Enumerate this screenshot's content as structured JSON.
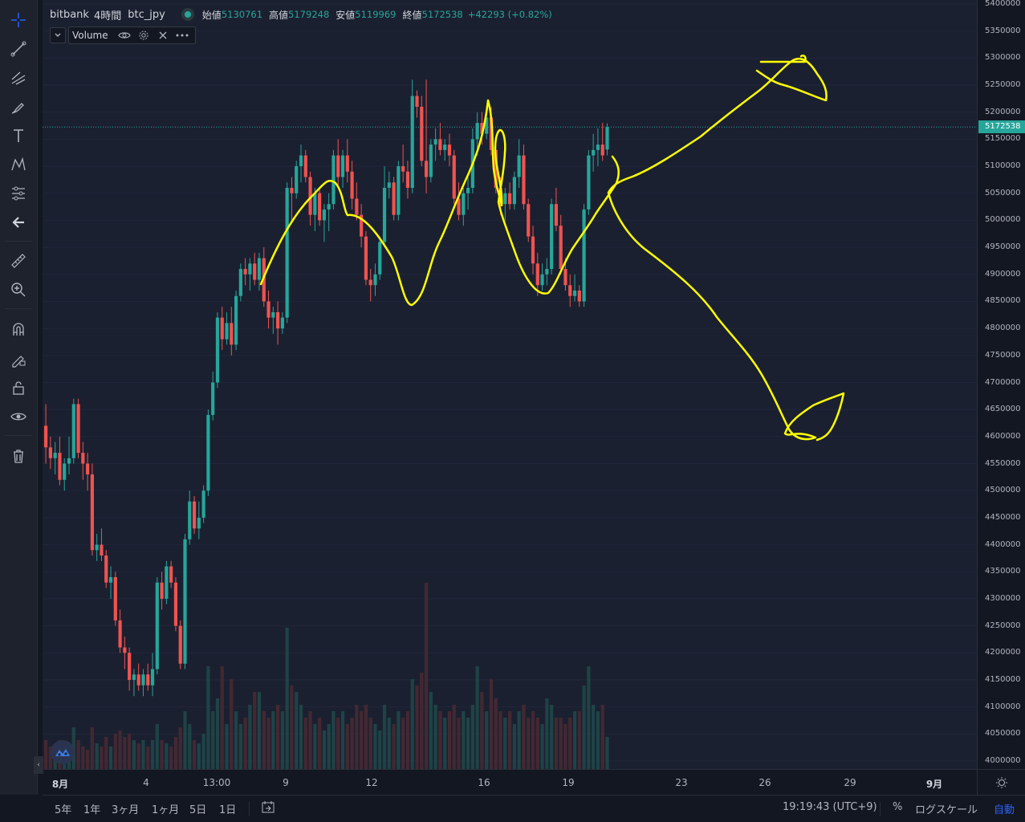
{
  "legend": {
    "exchange": "bitbank",
    "interval": "4時間",
    "symbol": "btc_jpy",
    "open_label": "始値",
    "open_value": "5130761",
    "high_label": "高値",
    "high_value": "5179248",
    "low_label": "安値",
    "low_value": "5119969",
    "close_label": "終値",
    "close_value": "5172538",
    "change": "+42293 (+0.82%)"
  },
  "study": {
    "name": "Volume"
  },
  "price_axis": {
    "labels": [
      "5400000",
      "5350000",
      "5300000",
      "5250000",
      "5200000",
      "5150000",
      "5100000",
      "5050000",
      "5000000",
      "4950000",
      "4900000",
      "4850000",
      "4800000",
      "4750000",
      "4700000",
      "4650000",
      "4600000",
      "4550000",
      "4500000",
      "4450000",
      "4400000",
      "4350000",
      "4300000",
      "4250000",
      "4200000",
      "4150000",
      "4100000",
      "4050000",
      "4000000"
    ],
    "last_price": "5172538"
  },
  "time_axis": {
    "labels": [
      {
        "text": "8月",
        "bold": true
      },
      {
        "text": "4",
        "bold": false
      },
      {
        "text": "13:00",
        "bold": false
      },
      {
        "text": "9",
        "bold": false
      },
      {
        "text": "12",
        "bold": false
      },
      {
        "text": "16",
        "bold": false
      },
      {
        "text": "19",
        "bold": false
      },
      {
        "text": "23",
        "bold": false
      },
      {
        "text": "26",
        "bold": false
      },
      {
        "text": "29",
        "bold": false
      },
      {
        "text": "9月",
        "bold": true
      }
    ]
  },
  "bottom_bar": {
    "ranges": [
      "5年",
      "1年",
      "3ヶ月",
      "1ヶ月",
      "5日",
      "1日"
    ],
    "time": "19:19:43 (UTC+9)",
    "percent": "%",
    "log_scale": "ログスケール",
    "auto": "自動"
  },
  "colors": {
    "up": "#26a69a",
    "down": "#ef5350",
    "annotation": "#ffff00",
    "background": "#1b2030"
  },
  "chart_data": {
    "type": "candlestick",
    "title": "bitbank 4時間 btc_jpy",
    "ylim": [
      4000000,
      5400000
    ],
    "interval": "4h",
    "last_price": 5172538,
    "candles": [
      {
        "o": 4620000,
        "h": 4660000,
        "l": 4550000,
        "c": 4580000,
        "v": 0.45
      },
      {
        "o": 4580000,
        "h": 4600000,
        "l": 4540000,
        "c": 4560000,
        "v": 0.35
      },
      {
        "o": 4560000,
        "h": 4590000,
        "l": 4530000,
        "c": 4570000,
        "v": 0.3
      },
      {
        "o": 4570000,
        "h": 4600000,
        "l": 4510000,
        "c": 4520000,
        "v": 0.45
      },
      {
        "o": 4520000,
        "h": 4560000,
        "l": 4500000,
        "c": 4550000,
        "v": 0.28
      },
      {
        "o": 4550000,
        "h": 4600000,
        "l": 4530000,
        "c": 4560000,
        "v": 0.3
      },
      {
        "o": 4560000,
        "h": 4670000,
        "l": 4550000,
        "c": 4660000,
        "v": 0.65
      },
      {
        "o": 4660000,
        "h": 4670000,
        "l": 4560000,
        "c": 4570000,
        "v": 0.45
      },
      {
        "o": 4570000,
        "h": 4590000,
        "l": 4520000,
        "c": 4550000,
        "v": 0.35
      },
      {
        "o": 4550000,
        "h": 4570000,
        "l": 4500000,
        "c": 4530000,
        "v": 0.3
      },
      {
        "o": 4530000,
        "h": 4550000,
        "l": 4380000,
        "c": 4390000,
        "v": 0.65
      },
      {
        "o": 4390000,
        "h": 4420000,
        "l": 4370000,
        "c": 4400000,
        "v": 0.4
      },
      {
        "o": 4400000,
        "h": 4430000,
        "l": 4370000,
        "c": 4380000,
        "v": 0.35
      },
      {
        "o": 4380000,
        "h": 4390000,
        "l": 4320000,
        "c": 4330000,
        "v": 0.5
      },
      {
        "o": 4330000,
        "h": 4360000,
        "l": 4300000,
        "c": 4340000,
        "v": 0.35
      },
      {
        "o": 4340000,
        "h": 4350000,
        "l": 4250000,
        "c": 4260000,
        "v": 0.55
      },
      {
        "o": 4260000,
        "h": 4280000,
        "l": 4200000,
        "c": 4210000,
        "v": 0.6
      },
      {
        "o": 4210000,
        "h": 4230000,
        "l": 4170000,
        "c": 4200000,
        "v": 0.5
      },
      {
        "o": 4200000,
        "h": 4210000,
        "l": 4130000,
        "c": 4150000,
        "v": 0.55
      },
      {
        "o": 4150000,
        "h": 4170000,
        "l": 4120000,
        "c": 4160000,
        "v": 0.45
      },
      {
        "o": 4160000,
        "h": 4180000,
        "l": 4130000,
        "c": 4140000,
        "v": 0.4
      },
      {
        "o": 4140000,
        "h": 4170000,
        "l": 4120000,
        "c": 4160000,
        "v": 0.45
      },
      {
        "o": 4160000,
        "h": 4180000,
        "l": 4130000,
        "c": 4140000,
        "v": 0.35
      },
      {
        "o": 4140000,
        "h": 4200000,
        "l": 4120000,
        "c": 4170000,
        "v": 0.45
      },
      {
        "o": 4170000,
        "h": 4340000,
        "l": 4160000,
        "c": 4330000,
        "v": 0.7
      },
      {
        "o": 4330000,
        "h": 4350000,
        "l": 4280000,
        "c": 4300000,
        "v": 0.45
      },
      {
        "o": 4300000,
        "h": 4370000,
        "l": 4290000,
        "c": 4360000,
        "v": 0.4
      },
      {
        "o": 4360000,
        "h": 4370000,
        "l": 4320000,
        "c": 4330000,
        "v": 0.35
      },
      {
        "o": 4330000,
        "h": 4340000,
        "l": 4240000,
        "c": 4250000,
        "v": 0.5
      },
      {
        "o": 4250000,
        "h": 4260000,
        "l": 4170000,
        "c": 4180000,
        "v": 0.65
      },
      {
        "o": 4180000,
        "h": 4420000,
        "l": 4170000,
        "c": 4410000,
        "v": 0.9
      },
      {
        "o": 4410000,
        "h": 4500000,
        "l": 4400000,
        "c": 4480000,
        "v": 0.7
      },
      {
        "o": 4480000,
        "h": 4490000,
        "l": 4420000,
        "c": 4430000,
        "v": 0.45
      },
      {
        "o": 4430000,
        "h": 4480000,
        "l": 4410000,
        "c": 4450000,
        "v": 0.4
      },
      {
        "o": 4450000,
        "h": 4510000,
        "l": 4440000,
        "c": 4500000,
        "v": 0.55
      },
      {
        "o": 4500000,
        "h": 4650000,
        "l": 4490000,
        "c": 4640000,
        "v": 1.6
      },
      {
        "o": 4640000,
        "h": 4720000,
        "l": 4630000,
        "c": 4700000,
        "v": 0.9
      },
      {
        "o": 4700000,
        "h": 4830000,
        "l": 4690000,
        "c": 4820000,
        "v": 1.1
      },
      {
        "o": 4820000,
        "h": 4840000,
        "l": 4760000,
        "c": 4780000,
        "v": 1.6
      },
      {
        "o": 4780000,
        "h": 4830000,
        "l": 4770000,
        "c": 4810000,
        "v": 0.7
      },
      {
        "o": 4810000,
        "h": 4840000,
        "l": 4750000,
        "c": 4770000,
        "v": 1.4
      },
      {
        "o": 4770000,
        "h": 4870000,
        "l": 4760000,
        "c": 4860000,
        "v": 0.9
      },
      {
        "o": 4860000,
        "h": 4920000,
        "l": 4850000,
        "c": 4910000,
        "v": 0.7
      },
      {
        "o": 4910000,
        "h": 4930000,
        "l": 4880000,
        "c": 4900000,
        "v": 0.8
      },
      {
        "o": 4900000,
        "h": 4930000,
        "l": 4870000,
        "c": 4920000,
        "v": 1.0
      },
      {
        "o": 4920000,
        "h": 4940000,
        "l": 4880000,
        "c": 4890000,
        "v": 1.2
      },
      {
        "o": 4890000,
        "h": 4940000,
        "l": 4870000,
        "c": 4930000,
        "v": 1.2
      },
      {
        "o": 4930000,
        "h": 4950000,
        "l": 4840000,
        "c": 4850000,
        "v": 0.9
      },
      {
        "o": 4850000,
        "h": 4870000,
        "l": 4800000,
        "c": 4820000,
        "v": 0.8
      },
      {
        "o": 4820000,
        "h": 4840000,
        "l": 4790000,
        "c": 4830000,
        "v": 0.9
      },
      {
        "o": 4830000,
        "h": 4850000,
        "l": 4770000,
        "c": 4800000,
        "v": 1.0
      },
      {
        "o": 4800000,
        "h": 4830000,
        "l": 4790000,
        "c": 4820000,
        "v": 0.9
      },
      {
        "o": 4820000,
        "h": 5070000,
        "l": 4810000,
        "c": 5060000,
        "v": 2.2
      },
      {
        "o": 5060000,
        "h": 5080000,
        "l": 5000000,
        "c": 5050000,
        "v": 1.3
      },
      {
        "o": 5050000,
        "h": 5110000,
        "l": 5040000,
        "c": 5100000,
        "v": 1.2
      },
      {
        "o": 5100000,
        "h": 5140000,
        "l": 5070000,
        "c": 5120000,
        "v": 1.0
      },
      {
        "o": 5120000,
        "h": 5130000,
        "l": 5070000,
        "c": 5080000,
        "v": 0.8
      },
      {
        "o": 5080000,
        "h": 5090000,
        "l": 4990000,
        "c": 5010000,
        "v": 0.9
      },
      {
        "o": 5010000,
        "h": 5060000,
        "l": 4980000,
        "c": 5050000,
        "v": 0.7
      },
      {
        "o": 5050000,
        "h": 5060000,
        "l": 4990000,
        "c": 5000000,
        "v": 0.8
      },
      {
        "o": 5000000,
        "h": 5030000,
        "l": 4960000,
        "c": 5020000,
        "v": 0.6
      },
      {
        "o": 5020000,
        "h": 5050000,
        "l": 4980000,
        "c": 5030000,
        "v": 0.7
      },
      {
        "o": 5030000,
        "h": 5130000,
        "l": 5020000,
        "c": 5120000,
        "v": 0.9
      },
      {
        "o": 5120000,
        "h": 5150000,
        "l": 5060000,
        "c": 5080000,
        "v": 0.8
      },
      {
        "o": 5080000,
        "h": 5130000,
        "l": 5060000,
        "c": 5120000,
        "v": 0.9
      },
      {
        "o": 5120000,
        "h": 5150000,
        "l": 5070000,
        "c": 5090000,
        "v": 0.7
      },
      {
        "o": 5090000,
        "h": 5110000,
        "l": 5020000,
        "c": 5040000,
        "v": 0.8
      },
      {
        "o": 5040000,
        "h": 5070000,
        "l": 5000000,
        "c": 5010000,
        "v": 1.0
      },
      {
        "o": 5010000,
        "h": 5030000,
        "l": 4950000,
        "c": 4970000,
        "v": 0.9
      },
      {
        "o": 4970000,
        "h": 4980000,
        "l": 4880000,
        "c": 4890000,
        "v": 1.0
      },
      {
        "o": 4890000,
        "h": 4910000,
        "l": 4850000,
        "c": 4880000,
        "v": 0.8
      },
      {
        "o": 4880000,
        "h": 4920000,
        "l": 4860000,
        "c": 4900000,
        "v": 0.7
      },
      {
        "o": 4900000,
        "h": 4970000,
        "l": 4890000,
        "c": 4960000,
        "v": 0.6
      },
      {
        "o": 4960000,
        "h": 5100000,
        "l": 4950000,
        "c": 5060000,
        "v": 1.0
      },
      {
        "o": 5060000,
        "h": 5090000,
        "l": 5040000,
        "c": 5070000,
        "v": 0.8
      },
      {
        "o": 5070000,
        "h": 5080000,
        "l": 5000000,
        "c": 5010000,
        "v": 0.7
      },
      {
        "o": 5010000,
        "h": 5110000,
        "l": 5000000,
        "c": 5100000,
        "v": 0.9
      },
      {
        "o": 5100000,
        "h": 5140000,
        "l": 5070000,
        "c": 5090000,
        "v": 0.8
      },
      {
        "o": 5090000,
        "h": 5110000,
        "l": 5040000,
        "c": 5060000,
        "v": 0.9
      },
      {
        "o": 5060000,
        "h": 5260000,
        "l": 5050000,
        "c": 5230000,
        "v": 1.4
      },
      {
        "o": 5230000,
        "h": 5240000,
        "l": 5190000,
        "c": 5210000,
        "v": 1.3
      },
      {
        "o": 5210000,
        "h": 5230000,
        "l": 5100000,
        "c": 5110000,
        "v": 1.5
      },
      {
        "o": 5110000,
        "h": 5260000,
        "l": 5050000,
        "c": 5080000,
        "v": 2.9
      },
      {
        "o": 5080000,
        "h": 5150000,
        "l": 5070000,
        "c": 5140000,
        "v": 1.2
      },
      {
        "o": 5140000,
        "h": 5170000,
        "l": 5110000,
        "c": 5150000,
        "v": 1.0
      },
      {
        "o": 5150000,
        "h": 5180000,
        "l": 5120000,
        "c": 5130000,
        "v": 0.9
      },
      {
        "o": 5130000,
        "h": 5150000,
        "l": 5110000,
        "c": 5140000,
        "v": 0.8
      },
      {
        "o": 5140000,
        "h": 5160000,
        "l": 5100000,
        "c": 5120000,
        "v": 0.9
      },
      {
        "o": 5120000,
        "h": 5130000,
        "l": 5030000,
        "c": 5040000,
        "v": 1.0
      },
      {
        "o": 5040000,
        "h": 5070000,
        "l": 5000000,
        "c": 5010000,
        "v": 0.8
      },
      {
        "o": 5010000,
        "h": 5060000,
        "l": 4990000,
        "c": 5050000,
        "v": 0.9
      },
      {
        "o": 5050000,
        "h": 5080000,
        "l": 5020000,
        "c": 5060000,
        "v": 0.8
      },
      {
        "o": 5060000,
        "h": 5170000,
        "l": 5050000,
        "c": 5150000,
        "v": 1.0
      },
      {
        "o": 5150000,
        "h": 5200000,
        "l": 5120000,
        "c": 5180000,
        "v": 1.6
      },
      {
        "o": 5180000,
        "h": 5200000,
        "l": 5140000,
        "c": 5160000,
        "v": 1.2
      },
      {
        "o": 5160000,
        "h": 5200000,
        "l": 5150000,
        "c": 5190000,
        "v": 0.9
      },
      {
        "o": 5190000,
        "h": 5210000,
        "l": 5120000,
        "c": 5130000,
        "v": 1.4
      },
      {
        "o": 5130000,
        "h": 5150000,
        "l": 5050000,
        "c": 5060000,
        "v": 1.1
      },
      {
        "o": 5060000,
        "h": 5080000,
        "l": 5010000,
        "c": 5030000,
        "v": 0.9
      },
      {
        "o": 5030000,
        "h": 5060000,
        "l": 5000000,
        "c": 5050000,
        "v": 0.8
      },
      {
        "o": 5050000,
        "h": 5070000,
        "l": 5020000,
        "c": 5030000,
        "v": 0.9
      },
      {
        "o": 5030000,
        "h": 5090000,
        "l": 5020000,
        "c": 5080000,
        "v": 0.7
      },
      {
        "o": 5080000,
        "h": 5150000,
        "l": 5060000,
        "c": 5120000,
        "v": 0.9
      },
      {
        "o": 5120000,
        "h": 5140000,
        "l": 5020000,
        "c": 5030000,
        "v": 1.0
      },
      {
        "o": 5030000,
        "h": 5040000,
        "l": 4960000,
        "c": 4970000,
        "v": 0.8
      },
      {
        "o": 4970000,
        "h": 4990000,
        "l": 4900000,
        "c": 4920000,
        "v": 0.9
      },
      {
        "o": 4920000,
        "h": 4940000,
        "l": 4860000,
        "c": 4880000,
        "v": 0.8
      },
      {
        "o": 4880000,
        "h": 4920000,
        "l": 4870000,
        "c": 4900000,
        "v": 0.7
      },
      {
        "o": 4900000,
        "h": 4930000,
        "l": 4880000,
        "c": 4910000,
        "v": 1.1
      },
      {
        "o": 4910000,
        "h": 5040000,
        "l": 4900000,
        "c": 5030000,
        "v": 1.0
      },
      {
        "o": 5030000,
        "h": 5060000,
        "l": 4980000,
        "c": 4990000,
        "v": 0.8
      },
      {
        "o": 4990000,
        "h": 5010000,
        "l": 4900000,
        "c": 4910000,
        "v": 0.8
      },
      {
        "o": 4910000,
        "h": 4930000,
        "l": 4870000,
        "c": 4880000,
        "v": 0.7
      },
      {
        "o": 4880000,
        "h": 4900000,
        "l": 4840000,
        "c": 4860000,
        "v": 0.8
      },
      {
        "o": 4860000,
        "h": 4900000,
        "l": 4850000,
        "c": 4870000,
        "v": 0.9
      },
      {
        "o": 4870000,
        "h": 4880000,
        "l": 4840000,
        "c": 4850000,
        "v": 0.9
      },
      {
        "o": 4850000,
        "h": 5030000,
        "l": 4840000,
        "c": 5020000,
        "v": 1.3
      },
      {
        "o": 5020000,
        "h": 5130000,
        "l": 5010000,
        "c": 5120000,
        "v": 1.6
      },
      {
        "o": 5120000,
        "h": 5160000,
        "l": 5090000,
        "c": 5130000,
        "v": 1.0
      },
      {
        "o": 5130000,
        "h": 5170000,
        "l": 5100000,
        "c": 5140000,
        "v": 0.9
      },
      {
        "o": 5140000,
        "h": 5180000,
        "l": 5110000,
        "c": 5120000,
        "v": 1.0
      },
      {
        "o": 5130761,
        "h": 5179248,
        "l": 5119969,
        "c": 5172538,
        "v": 0.5
      }
    ]
  }
}
